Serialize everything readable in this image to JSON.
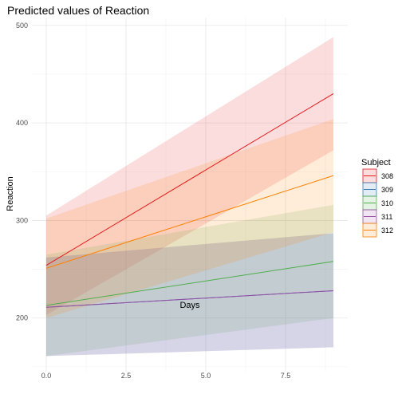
{
  "chart_data": {
    "type": "line",
    "title": "Predicted values of Reaction",
    "xlabel": "Days",
    "ylabel": "Reaction",
    "xlim": [
      -0.45,
      9.45
    ],
    "ylim": [
      145,
      508
    ],
    "x_ticks": [
      0.0,
      2.5,
      5.0,
      7.5
    ],
    "x_tick_labels": [
      "0.0",
      "2.5",
      "5.0",
      "7.5"
    ],
    "x_minor_ticks": [
      1.25,
      3.75,
      6.25,
      8.75
    ],
    "y_ticks": [
      200,
      300,
      400,
      500
    ],
    "y_tick_labels": [
      "200",
      "300",
      "400",
      "500"
    ],
    "y_minor_ticks": [
      150,
      250,
      350,
      450
    ],
    "grid": true,
    "legend": {
      "title": "Subject",
      "position": "right"
    },
    "series": [
      {
        "name": "308",
        "color": "#E41A1C",
        "x": [
          0,
          9
        ],
        "y": [
          254,
          430
        ],
        "lower": [
          203,
          372
        ],
        "upper": [
          305,
          488
        ]
      },
      {
        "name": "309",
        "color": "#377EB8",
        "x": [
          0,
          9
        ],
        "y": [
          211,
          228
        ],
        "lower": [
          161,
          170
        ],
        "upper": [
          262,
          287
        ]
      },
      {
        "name": "310",
        "color": "#4DAF4A",
        "x": [
          0,
          9
        ],
        "y": [
          213,
          258
        ],
        "lower": [
          161,
          200
        ],
        "upper": [
          265,
          316
        ]
      },
      {
        "name": "311",
        "color": "#984EA3",
        "x": [
          0,
          9
        ],
        "y": [
          211,
          228
        ],
        "lower": [
          161,
          170
        ],
        "upper": [
          262,
          287
        ]
      },
      {
        "name": "312",
        "color": "#FF7F00",
        "x": [
          0,
          9
        ],
        "y": [
          251,
          346
        ],
        "lower": [
          200,
          288
        ],
        "upper": [
          302,
          404
        ]
      }
    ]
  }
}
